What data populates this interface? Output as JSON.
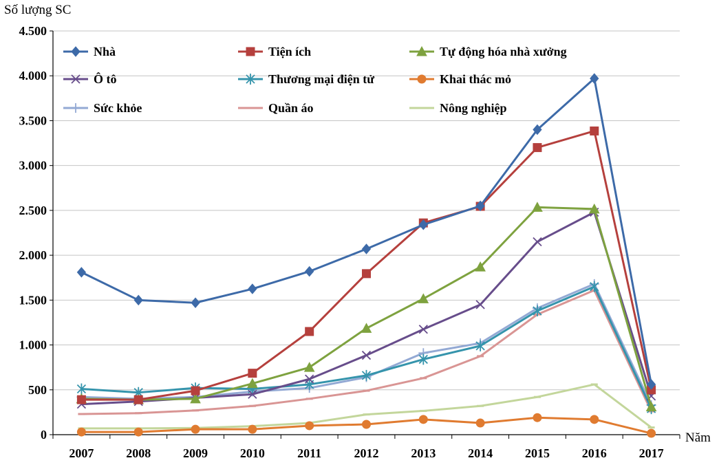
{
  "chart_data": {
    "type": "line",
    "ylabel": "Số lượng SC",
    "xlabel": "Năm",
    "ylim": [
      0,
      4500
    ],
    "yticks": [
      {
        "value": 0,
        "label": "0"
      },
      {
        "value": 500,
        "label": "500"
      },
      {
        "value": 1000,
        "label": "1.000"
      },
      {
        "value": 1500,
        "label": "1.500"
      },
      {
        "value": 2000,
        "label": "2.000"
      },
      {
        "value": 2500,
        "label": "2.500"
      },
      {
        "value": 3000,
        "label": "3.000"
      },
      {
        "value": 3500,
        "label": "3.500"
      },
      {
        "value": 4000,
        "label": "4.000"
      },
      {
        "value": 4500,
        "label": "4.500"
      }
    ],
    "categories": [
      "2007",
      "2008",
      "2009",
      "2010",
      "2011",
      "2012",
      "2013",
      "2014",
      "2015",
      "2016",
      "2017"
    ],
    "grid": "horizontal",
    "legend": "top, inside plot, 3 columns",
    "series": [
      {
        "name": "Nhà",
        "color": "#3d6aa8",
        "marker": "diamond",
        "values": [
          1810,
          1500,
          1470,
          1625,
          1820,
          2070,
          2340,
          2550,
          3400,
          3970,
          560
        ]
      },
      {
        "name": "Tiện ích",
        "color": "#b5403d",
        "marker": "square",
        "values": [
          390,
          390,
          490,
          685,
          1150,
          1795,
          2360,
          2545,
          3200,
          3385,
          500
        ]
      },
      {
        "name": "Tự động hóa nhà xưởng",
        "color": "#7ea23f",
        "marker": "triangle",
        "values": [
          400,
          390,
          400,
          570,
          750,
          1185,
          1515,
          1870,
          2535,
          2515,
          310
        ]
      },
      {
        "name": "Ô tô",
        "color": "#674d8b",
        "marker": "x",
        "values": [
          340,
          370,
          410,
          450,
          620,
          885,
          1175,
          1450,
          2150,
          2480,
          430
        ]
      },
      {
        "name": "Thương mại điện tử",
        "color": "#3594ac",
        "marker": "star",
        "values": [
          510,
          470,
          520,
          510,
          560,
          660,
          840,
          990,
          1380,
          1650,
          290
        ]
      },
      {
        "name": "Khai thác mỏ",
        "color": "#e07b30",
        "marker": "circle",
        "values": [
          30,
          30,
          60,
          60,
          100,
          115,
          170,
          130,
          190,
          170,
          15
        ]
      },
      {
        "name": "Sức khỏe",
        "color": "#93a9d4",
        "marker": "plus",
        "values": [
          420,
          400,
          420,
          480,
          520,
          640,
          910,
          1020,
          1410,
          1680,
          330
        ]
      },
      {
        "name": "Quần áo",
        "color": "#d99594",
        "marker": "dash",
        "values": [
          230,
          240,
          270,
          320,
          400,
          490,
          630,
          875,
          1340,
          1610,
          260
        ]
      },
      {
        "name": "Nông nghiệp",
        "color": "#c3d69b",
        "marker": "dash",
        "values": [
          70,
          70,
          75,
          95,
          130,
          225,
          265,
          320,
          420,
          560,
          80
        ]
      }
    ]
  }
}
